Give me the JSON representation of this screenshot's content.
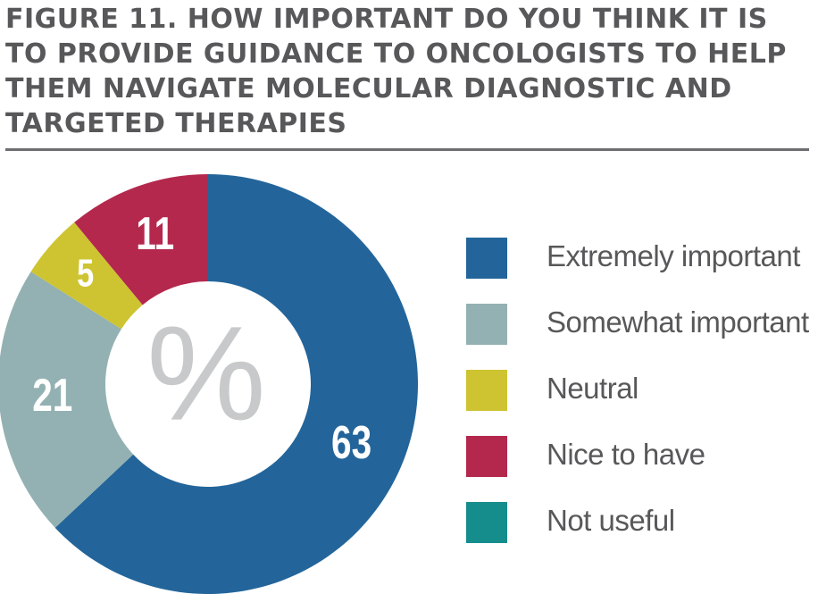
{
  "chart_data": {
    "type": "pie",
    "title": "FIGURE 11. HOW IMPORTANT DO YOU THINK IT IS TO PROVIDE GUIDANCE TO ONCOLOGISTS TO HELP THEM NAVIGATE MOLECULAR DIAGNOSTIC AND TARGETED THERAPIES",
    "center_label": "%",
    "slices": [
      {
        "label": "Extremely important",
        "value": 63,
        "color": "#23659a"
      },
      {
        "label": "Somewhat important",
        "value": 21,
        "color": "#93b1b2"
      },
      {
        "label": "Neutral",
        "value": 5,
        "color": "#cec431"
      },
      {
        "label": "Nice to have",
        "value": 11,
        "color": "#b4284d"
      },
      {
        "label": "Not useful",
        "value": 0,
        "color": "#158d8c"
      }
    ],
    "legend_position": "right"
  }
}
